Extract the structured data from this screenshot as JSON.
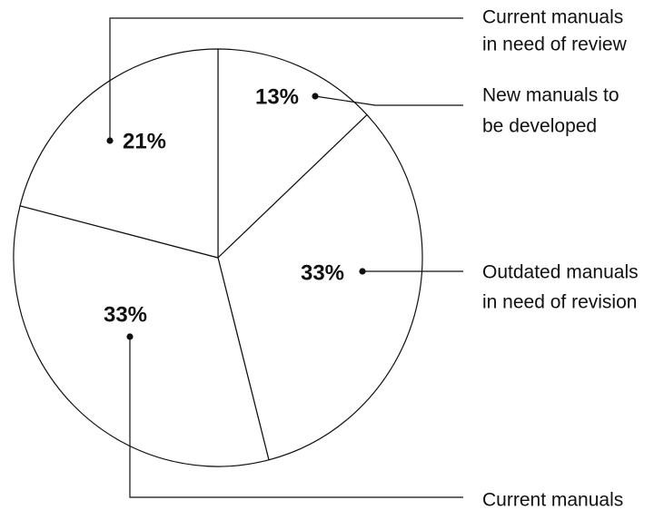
{
  "chart_data": {
    "type": "pie",
    "slices": [
      {
        "category": "New manuals to be developed",
        "value": 13,
        "value_label": "13%",
        "label_lines": [
          "New manuals to",
          "be developed"
        ]
      },
      {
        "category": "Outdated manuals in need of revision",
        "value": 33,
        "value_label": "33%",
        "label_lines": [
          "Outdated manuals",
          "in need of revision"
        ]
      },
      {
        "category": "Current manuals",
        "value": 33,
        "value_label": "33%",
        "label_lines": [
          "Current manuals"
        ]
      },
      {
        "category": "Current manuals in need of review",
        "value": 21,
        "value_label": "21%",
        "label_lines": [
          "Current manuals",
          "in need of review"
        ]
      }
    ],
    "start": "12 o'clock",
    "direction": "clockwise",
    "fill": "#ffffff",
    "stroke": "#111111"
  }
}
